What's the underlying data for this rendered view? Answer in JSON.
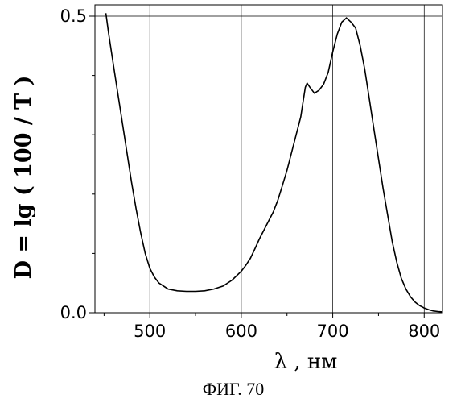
{
  "caption": "ФИГ. 70",
  "chart_data": {
    "type": "line",
    "xlabel": "λ , нм",
    "ylabel": "D = lg ( 100 / T )",
    "xlim": [
      440,
      820
    ],
    "ylim": [
      0,
      0.5
    ],
    "x_ticks": [
      500,
      600,
      700,
      800
    ],
    "x_tick_labels": [
      "500",
      "600",
      "700",
      "800"
    ],
    "y_ticks": [
      0.0,
      0.5
    ],
    "y_tick_labels": [
      "0.0",
      "0.5"
    ],
    "grid": true,
    "series": [
      {
        "x": [
          452,
          455,
          460,
          465,
          470,
          475,
          480,
          485,
          490,
          495,
          500,
          505,
          510,
          520,
          530,
          540,
          550,
          560,
          570,
          580,
          590,
          600,
          605,
          610,
          615,
          620,
          625,
          630,
          635,
          640,
          645,
          650,
          655,
          660,
          665,
          668,
          670,
          672,
          675,
          680,
          685,
          690,
          695,
          700,
          705,
          710,
          715,
          720,
          725,
          730,
          735,
          740,
          745,
          750,
          755,
          760,
          765,
          770,
          775,
          780,
          785,
          790,
          795,
          800,
          805,
          810,
          815,
          820
        ],
        "y": [
          0.505,
          0.47,
          0.42,
          0.37,
          0.32,
          0.27,
          0.22,
          0.175,
          0.135,
          0.1,
          0.075,
          0.06,
          0.05,
          0.04,
          0.037,
          0.036,
          0.036,
          0.037,
          0.04,
          0.045,
          0.055,
          0.07,
          0.08,
          0.092,
          0.108,
          0.125,
          0.14,
          0.155,
          0.17,
          0.19,
          0.215,
          0.24,
          0.27,
          0.3,
          0.33,
          0.36,
          0.38,
          0.387,
          0.38,
          0.37,
          0.375,
          0.385,
          0.405,
          0.44,
          0.47,
          0.49,
          0.497,
          0.49,
          0.48,
          0.45,
          0.41,
          0.36,
          0.31,
          0.26,
          0.21,
          0.165,
          0.12,
          0.085,
          0.058,
          0.04,
          0.027,
          0.018,
          0.012,
          0.008,
          0.005,
          0.003,
          0.002,
          0.0015
        ]
      }
    ]
  }
}
